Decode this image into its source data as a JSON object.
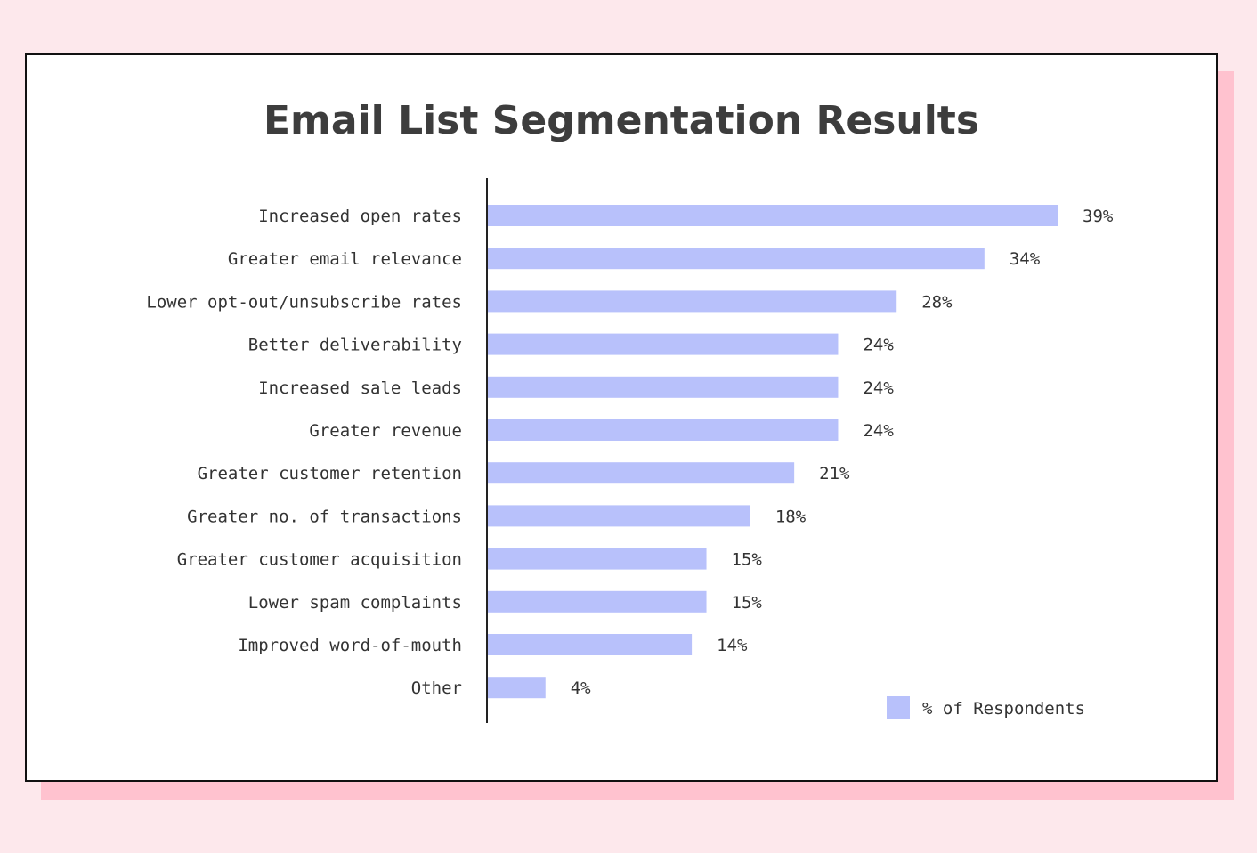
{
  "chart_data": {
    "type": "bar",
    "orientation": "horizontal",
    "title": "Email List Segmentation Results",
    "xlabel": "",
    "ylabel": "",
    "xlim": [
      0,
      39
    ],
    "grid": false,
    "legend_position": "bottom-right",
    "categories": [
      "Increased open rates",
      "Greater email relevance",
      "Lower opt-out/unsubscribe rates",
      "Better deliverability",
      "Increased sale leads",
      "Greater revenue",
      "Greater customer retention",
      "Greater no. of transactions",
      "Greater customer acquisition",
      "Lower spam complaints",
      "Improved word-of-mouth",
      "Other"
    ],
    "series": [
      {
        "name": "% of Respondents",
        "values": [
          39,
          34,
          28,
          24,
          24,
          24,
          21,
          18,
          15,
          15,
          14,
          4
        ],
        "labels": [
          "39%",
          "34%",
          "28%",
          "24%",
          "24%",
          "24%",
          "21%",
          "18%",
          "15%",
          "15%",
          "14%",
          "4%"
        ],
        "color": "#b8c1fb"
      }
    ]
  },
  "colors": {
    "background": "#fde8ec",
    "card_shadow": "#ffc2cf",
    "card": "#ffffff",
    "bar": "#b8c1fb",
    "text": "#333333",
    "title": "#3d3d3d"
  }
}
